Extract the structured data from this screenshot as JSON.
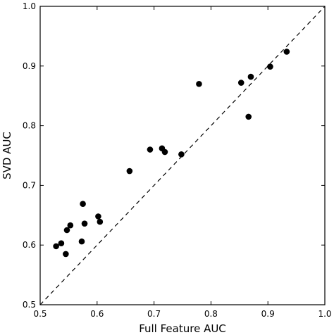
{
  "chart_data": {
    "type": "scatter",
    "title": "",
    "xlabel": "Full Feature AUC",
    "ylabel": "SVD AUC",
    "xlim": [
      0.5,
      1.0
    ],
    "ylim": [
      0.5,
      1.0
    ],
    "xticks": [
      "0.5",
      "0.6",
      "0.7",
      "0.8",
      "0.9",
      "1.0"
    ],
    "yticks": [
      "0.5",
      "0.6",
      "0.7",
      "0.8",
      "0.9",
      "1.0"
    ],
    "grid": false,
    "reference_line": {
      "style": "dashed",
      "from": [
        0.5,
        0.5
      ],
      "to": [
        1.0,
        1.0
      ]
    },
    "marker_color": "#000000",
    "points": [
      {
        "x": 0.528,
        "y": 0.598
      },
      {
        "x": 0.537,
        "y": 0.603
      },
      {
        "x": 0.545,
        "y": 0.585
      },
      {
        "x": 0.547,
        "y": 0.625
      },
      {
        "x": 0.553,
        "y": 0.633
      },
      {
        "x": 0.573,
        "y": 0.606
      },
      {
        "x": 0.575,
        "y": 0.669
      },
      {
        "x": 0.578,
        "y": 0.636
      },
      {
        "x": 0.602,
        "y": 0.648
      },
      {
        "x": 0.605,
        "y": 0.639
      },
      {
        "x": 0.657,
        "y": 0.724
      },
      {
        "x": 0.693,
        "y": 0.76
      },
      {
        "x": 0.714,
        "y": 0.762
      },
      {
        "x": 0.719,
        "y": 0.756
      },
      {
        "x": 0.748,
        "y": 0.752
      },
      {
        "x": 0.779,
        "y": 0.87
      },
      {
        "x": 0.853,
        "y": 0.872
      },
      {
        "x": 0.866,
        "y": 0.815
      },
      {
        "x": 0.87,
        "y": 0.882
      },
      {
        "x": 0.904,
        "y": 0.899
      },
      {
        "x": 0.933,
        "y": 0.924
      }
    ]
  }
}
